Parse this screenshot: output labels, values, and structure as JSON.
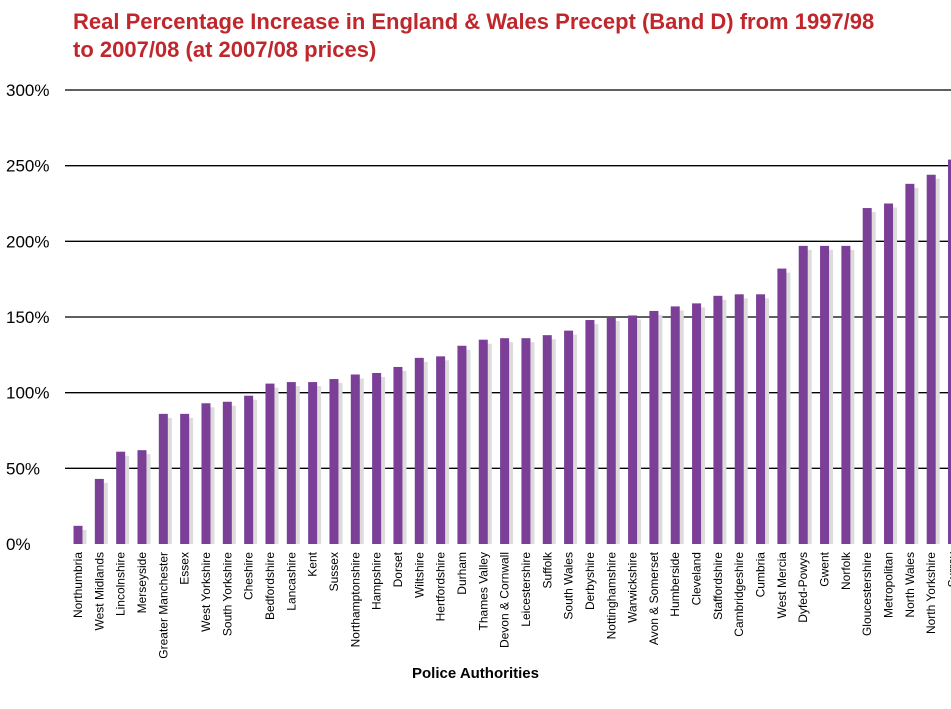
{
  "colors": {
    "bar": "#7b3f98",
    "shadow": "#dcdcdc",
    "title": "#c0272d",
    "grid": "#000000"
  },
  "chart_data": {
    "type": "bar",
    "title": "Real Percentage Increase in England & Wales Precept (Band D) from 1997/98 to 2007/08 (at 2007/08 prices)",
    "xlabel": "Police Authorities",
    "ylabel": "",
    "ylim": [
      0,
      300
    ],
    "yticks": [
      0,
      50,
      100,
      150,
      200,
      250,
      300
    ],
    "ytick_labels": [
      "0%",
      "50%",
      "100%",
      "150%",
      "200%",
      "250%",
      "300%"
    ],
    "grid": true,
    "categories": [
      "Northumbria",
      "West Midlands",
      "Lincolnshire",
      "Merseyside",
      "Greater Manchester",
      "Essex",
      "West Yorkshire",
      "South Yorkshire",
      "Cheshire",
      "Bedfordshire",
      "Lancashire",
      "Kent",
      "Sussex",
      "Northamptonshire",
      "Hampshire",
      "Dorset",
      "Wiltshire",
      "Hertfordshire",
      "Durham",
      "Thames Valley",
      "Devon & Cornwall",
      "Leicestershire",
      "Suffolk",
      "South Wales",
      "Derbyshire",
      "Nottinghamshire",
      "Warwickshire",
      "Avon & Somerset",
      "Humberside",
      "Cleveland",
      "Staffordshire",
      "Cambridgeshire",
      "Cumbria",
      "West Mercia",
      "Dyfed-Powys",
      "Gwent",
      "Norfolk",
      "Gloucestershire",
      "Metropolitan",
      "North Wales",
      "North Yorkshire",
      "Surrey"
    ],
    "values": [
      12,
      43,
      61,
      62,
      86,
      86,
      93,
      94,
      98,
      106,
      107,
      107,
      109,
      112,
      113,
      117,
      123,
      124,
      131,
      135,
      136,
      136,
      138,
      141,
      148,
      150,
      151,
      154,
      157,
      159,
      164,
      165,
      165,
      182,
      197,
      197,
      197,
      222,
      225,
      238,
      244,
      254
    ]
  }
}
